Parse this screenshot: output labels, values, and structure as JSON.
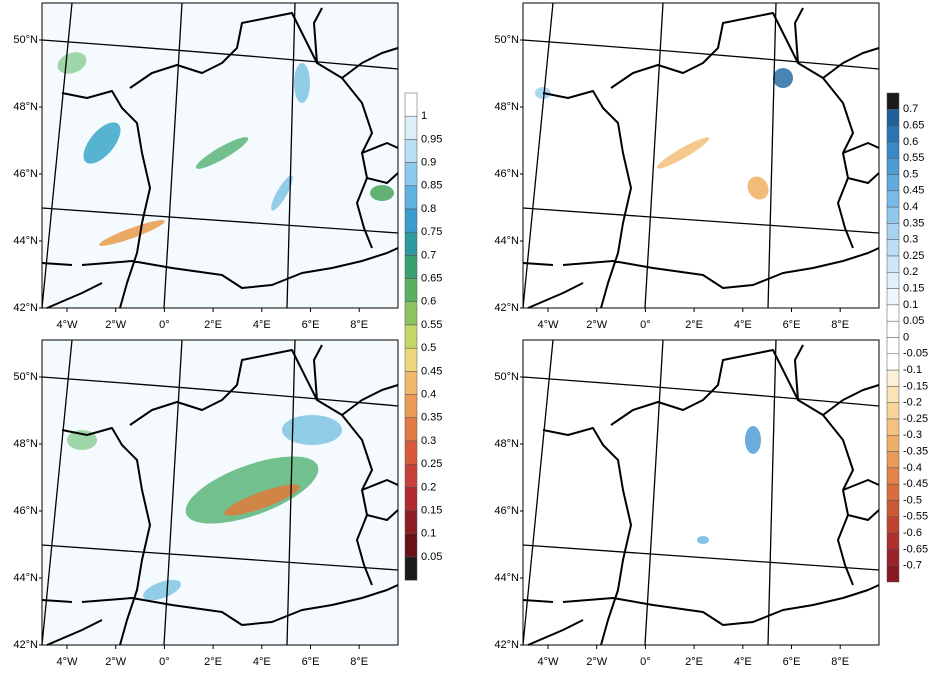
{
  "latitude_labels": [
    "50°N",
    "48°N",
    "46°N",
    "44°N",
    "42°N"
  ],
  "longitude_labels": [
    "4°W",
    "2°W",
    "0°",
    "2°E",
    "4°E",
    "6°E",
    "8°E"
  ],
  "colorbar_left": {
    "ticks": [
      "1",
      "0.95",
      "0.9",
      "0.85",
      "0.8",
      "0.75",
      "0.7",
      "0.65",
      "0.6",
      "0.55",
      "0.5",
      "0.45",
      "0.4",
      "0.35",
      "0.3",
      "0.25",
      "0.2",
      "0.15",
      "0.1",
      "0.05"
    ]
  },
  "colorbar_right": {
    "ticks": [
      "0.7",
      "0.65",
      "0.6",
      "0.55",
      "0.5",
      "0.45",
      "0.4",
      "0.35",
      "0.3",
      "0.25",
      "0.2",
      "0.15",
      "0.1",
      "0.05",
      "0",
      "-0.05",
      "-0.1",
      "-0.15",
      "-0.2",
      "-0.25",
      "-0.3",
      "-0.35",
      "-0.4",
      "-0.45",
      "-0.5",
      "-0.55",
      "-0.6",
      "-0.65",
      "-0.7"
    ]
  }
}
